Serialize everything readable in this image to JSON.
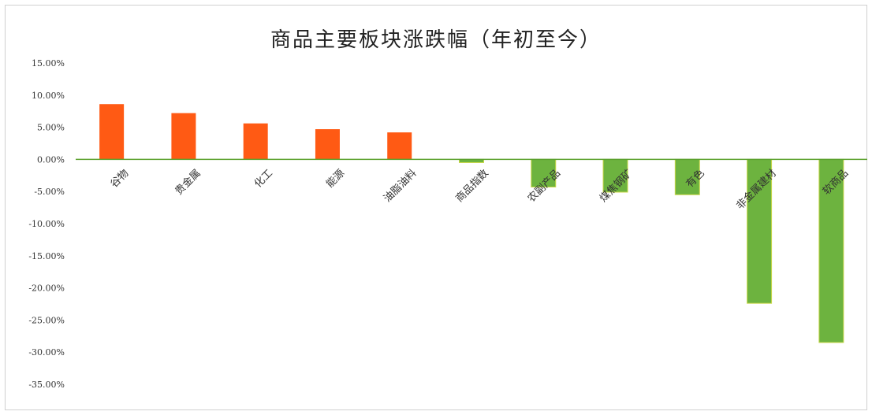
{
  "chart_data": {
    "type": "bar",
    "title": "商品主要板块涨跌幅（年初至今）",
    "categories": [
      "谷物",
      "贵金属",
      "化工",
      "能源",
      "油脂油料",
      "商品指数",
      "农副产品",
      "煤焦钢矿",
      "有色",
      "非金属建材",
      "软商品"
    ],
    "values": [
      8.6,
      7.2,
      5.6,
      4.7,
      4.2,
      -0.5,
      -4.3,
      -5.1,
      -5.5,
      -22.4,
      -28.5
    ],
    "y_ticks": [
      "15.00%",
      "10.00%",
      "5.00%",
      "0.00%",
      "-5.00%",
      "-10.00%",
      "-15.00%",
      "-20.00%",
      "-25.00%",
      "-30.00%",
      "-35.00%"
    ],
    "ylim": [
      -35,
      15
    ],
    "unit": "%",
    "grid": false,
    "colors": {
      "positive": "#ff5a14",
      "negative": "#6db33f",
      "zero_line": "#5aa02c"
    }
  }
}
